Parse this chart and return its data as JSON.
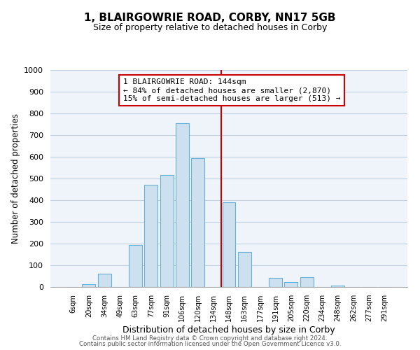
{
  "title1": "1, BLAIRGOWRIE ROAD, CORBY, NN17 5GB",
  "title2": "Size of property relative to detached houses in Corby",
  "xlabel": "Distribution of detached houses by size in Corby",
  "ylabel": "Number of detached properties",
  "footer1": "Contains HM Land Registry data © Crown copyright and database right 2024.",
  "footer2": "Contains public sector information licensed under the Open Government Licence v3.0.",
  "bin_labels": [
    "6sqm",
    "20sqm",
    "34sqm",
    "49sqm",
    "63sqm",
    "77sqm",
    "91sqm",
    "106sqm",
    "120sqm",
    "134sqm",
    "148sqm",
    "163sqm",
    "177sqm",
    "191sqm",
    "205sqm",
    "220sqm",
    "234sqm",
    "248sqm",
    "262sqm",
    "277sqm",
    "291sqm"
  ],
  "bar_heights": [
    0,
    12,
    62,
    0,
    195,
    470,
    515,
    755,
    595,
    0,
    390,
    160,
    0,
    42,
    22,
    45,
    0,
    5,
    0,
    0,
    0
  ],
  "bar_color": "#cce0f0",
  "bar_edge_color": "#6aafd6",
  "vline_color": "#cc0000",
  "ylim": [
    0,
    1000
  ],
  "yticks": [
    0,
    100,
    200,
    300,
    400,
    500,
    600,
    700,
    800,
    900,
    1000
  ],
  "annotation_title": "1 BLAIRGOWRIE ROAD: 144sqm",
  "annotation_line1": "← 84% of detached houses are smaller (2,870)",
  "annotation_line2": "15% of semi-detached houses are larger (513) →",
  "box_edge_color": "#cc0000",
  "box_face_color": "#ffffff",
  "bg_color": "#eef4fa",
  "grid_color": "#c0d0e0"
}
